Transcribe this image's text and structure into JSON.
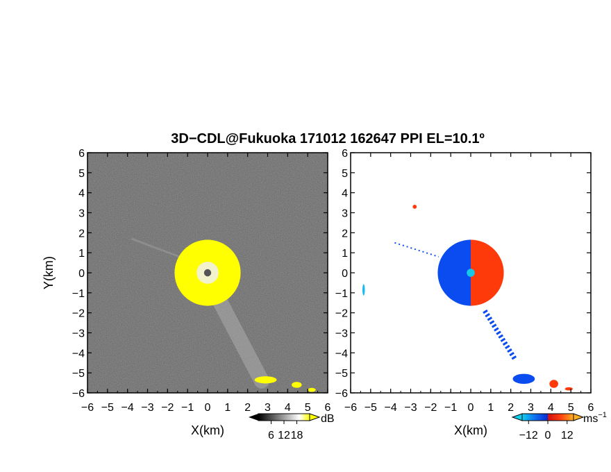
{
  "chart_data": [
    {
      "type": "heatmap",
      "panel": "reflectivity",
      "title": "3D−CDL@Fukuoka 171012 162647 PPI EL=10.1º",
      "xlabel": "X(km)",
      "ylabel": "Y(km)",
      "xlim": [
        -6,
        6
      ],
      "ylim": [
        -6,
        6
      ],
      "xticks": [
        "−6",
        "−5",
        "−4",
        "−3",
        "−2",
        "−1",
        "0",
        "1",
        "2",
        "3",
        "4",
        "5",
        "6"
      ],
      "yticks": [
        "6",
        "5",
        "4",
        "3",
        "2",
        "1",
        "0",
        "−1",
        "−2",
        "−3",
        "−4",
        "−5",
        "−6"
      ],
      "colorbar": {
        "unit": "dB",
        "ticks": [
          "6",
          "12",
          "18"
        ],
        "values": [
          6,
          12,
          18
        ],
        "range": [
          0,
          24
        ]
      },
      "background_color": "#2e2e2e",
      "echo_color": "#ffff00",
      "features": {
        "echo_disk": {
          "center": [
            0,
            0
          ],
          "radius_km": 1.65,
          "value_db": 24
        },
        "radar_center": {
          "center": [
            0,
            0
          ],
          "radius_km": 0.18
        },
        "plume": {
          "from": [
            0.6,
            -1.4
          ],
          "to": [
            2.7,
            -5.4
          ]
        },
        "echo_patches": [
          {
            "center": [
              2.9,
              -5.35
            ],
            "rx_km": 0.55,
            "ry_km": 0.18
          },
          {
            "center": [
              4.45,
              -5.6
            ],
            "rx_km": 0.25,
            "ry_km": 0.15
          },
          {
            "center": [
              5.2,
              -5.85
            ],
            "rx_km": 0.2,
            "ry_km": 0.1
          }
        ]
      }
    },
    {
      "type": "heatmap",
      "panel": "doppler-velocity",
      "xlabel": "X(km)",
      "xlim": [
        -6,
        6
      ],
      "ylim": [
        -6,
        6
      ],
      "xticks": [
        "−6",
        "−5",
        "−4",
        "−3",
        "−2",
        "−1",
        "0",
        "1",
        "2",
        "3",
        "4",
        "5",
        "6"
      ],
      "yticks": [
        "6",
        "5",
        "4",
        "3",
        "2",
        "1",
        "0",
        "−1",
        "−2",
        "−3",
        "−4",
        "−5",
        "−6"
      ],
      "colorbar": {
        "unit": "ms",
        "unit_exponent": "−1",
        "ticks": [
          "−12",
          "0",
          "12"
        ],
        "values": [
          -12,
          0,
          12
        ],
        "range": [
          -16,
          16
        ]
      },
      "negative_color": "#0a4cf0",
      "positive_color": "#ff3a0a",
      "features": {
        "echo_disk": {
          "center": [
            0,
            0
          ],
          "radius_km": 1.65
        },
        "radar_center": {
          "center": [
            0,
            0
          ],
          "radius_km": 0.2,
          "color": "#18c8e8"
        },
        "plume": {
          "from": [
            0.7,
            -1.9
          ],
          "to": [
            2.2,
            -4.3
          ]
        },
        "velocity_patches": [
          {
            "center": [
              2.65,
              -5.3
            ],
            "rx_km": 0.55,
            "ry_km": 0.25,
            "sign": "negative"
          },
          {
            "center": [
              4.15,
              -5.55
            ],
            "rx_km": 0.22,
            "ry_km": 0.2,
            "sign": "positive"
          },
          {
            "center": [
              4.9,
              -5.8
            ],
            "rx_km": 0.2,
            "ry_km": 0.08,
            "sign": "positive"
          },
          {
            "center": [
              -2.8,
              3.3
            ],
            "rx_km": 0.1,
            "ry_km": 0.1,
            "sign": "positive"
          },
          {
            "center": [
              -5.35,
              -0.85
            ],
            "rx_km": 0.06,
            "ry_km": 0.28,
            "sign": "light-negative"
          }
        ]
      }
    }
  ]
}
